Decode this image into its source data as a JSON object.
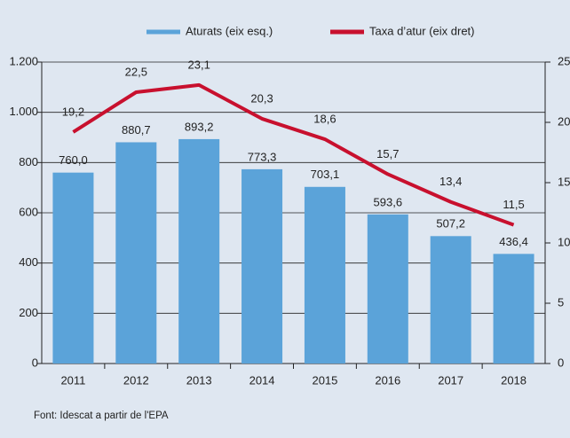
{
  "chart_data": {
    "type": "bar_line",
    "legend_position": "top",
    "grid": true,
    "categories": [
      "2011",
      "2012",
      "2013",
      "2014",
      "2015",
      "2016",
      "2017",
      "2018"
    ],
    "series": [
      {
        "name": "Aturats (eix esq.)",
        "color": "#5ba3d9",
        "type": "bar",
        "values": [
          760.0,
          880.7,
          893.2,
          773.3,
          703.1,
          593.6,
          507.2,
          436.4
        ],
        "value_labels": [
          "760,0",
          "880,7",
          "893,2",
          "773,3",
          "703,1",
          "593,6",
          "507,2",
          "436,4"
        ]
      },
      {
        "name": "Taxa d’atur (eix dret)",
        "color": "#c8102e",
        "type": "line",
        "axis": "y2",
        "values": [
          19.2,
          22.5,
          23.1,
          20.3,
          18.6,
          15.7,
          13.4,
          11.5
        ],
        "value_labels": [
          "19,2",
          "22,5",
          "23,1",
          "20,3",
          "18,6",
          "15,7",
          "13,4",
          "11,5"
        ]
      }
    ],
    "ylim": [
      0,
      1200
    ],
    "yticks": [
      0,
      200,
      400,
      600,
      800,
      {
        "value": 1000,
        "label": "1.000"
      },
      {
        "value": 1200,
        "label": "1.200"
      }
    ],
    "y2lim": [
      0,
      25
    ],
    "y2ticks": [
      0,
      5,
      10,
      15,
      20,
      25
    ],
    "source": "Font: Idescat a partir de l'EPA"
  }
}
